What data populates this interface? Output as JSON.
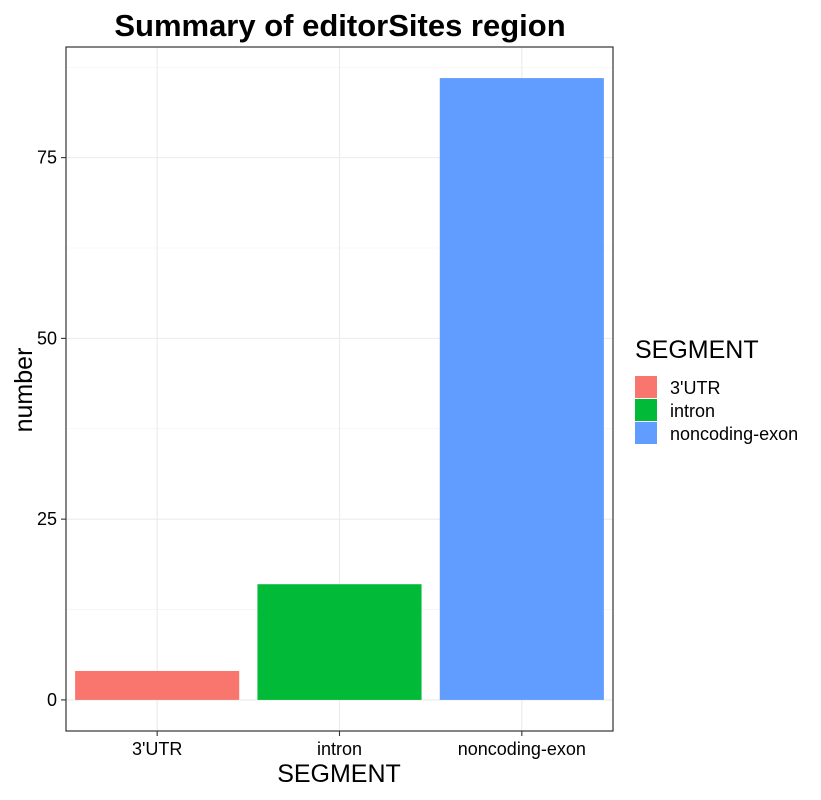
{
  "chart_data": {
    "type": "bar",
    "title": "Summary of editorSites region",
    "xlabel": "SEGMENT",
    "ylabel": "number",
    "categories": [
      "3'UTR",
      "intron",
      "noncoding-exon"
    ],
    "values": [
      4,
      16,
      86
    ],
    "colors": [
      "#F8766D",
      "#00BA38",
      "#619CFF"
    ],
    "ylim": [
      -4.3,
      90.3
    ],
    "yticks": [
      0,
      25,
      50,
      75
    ],
    "ytick_labels": [
      "0",
      "25",
      "50",
      "75"
    ],
    "grid": true,
    "legend": {
      "title": "SEGMENT",
      "placement": "right",
      "entries": [
        "3'UTR",
        "intron",
        "noncoding-exon"
      ]
    }
  }
}
